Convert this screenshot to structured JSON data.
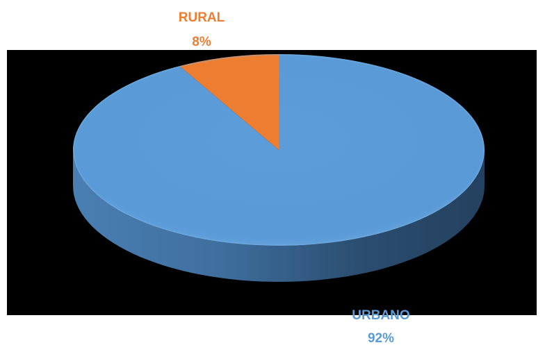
{
  "chart_data": {
    "type": "pie",
    "style": "3d",
    "categories": [
      "URBANO",
      "RURAL"
    ],
    "values": [
      92,
      8
    ],
    "labels": [
      {
        "name": "URBANO",
        "value": "92%"
      },
      {
        "name": "RURAL",
        "value": "8%"
      }
    ],
    "colors": [
      "#5b9bd5",
      "#ed7d31"
    ],
    "background": "#000000",
    "legend": "none"
  }
}
